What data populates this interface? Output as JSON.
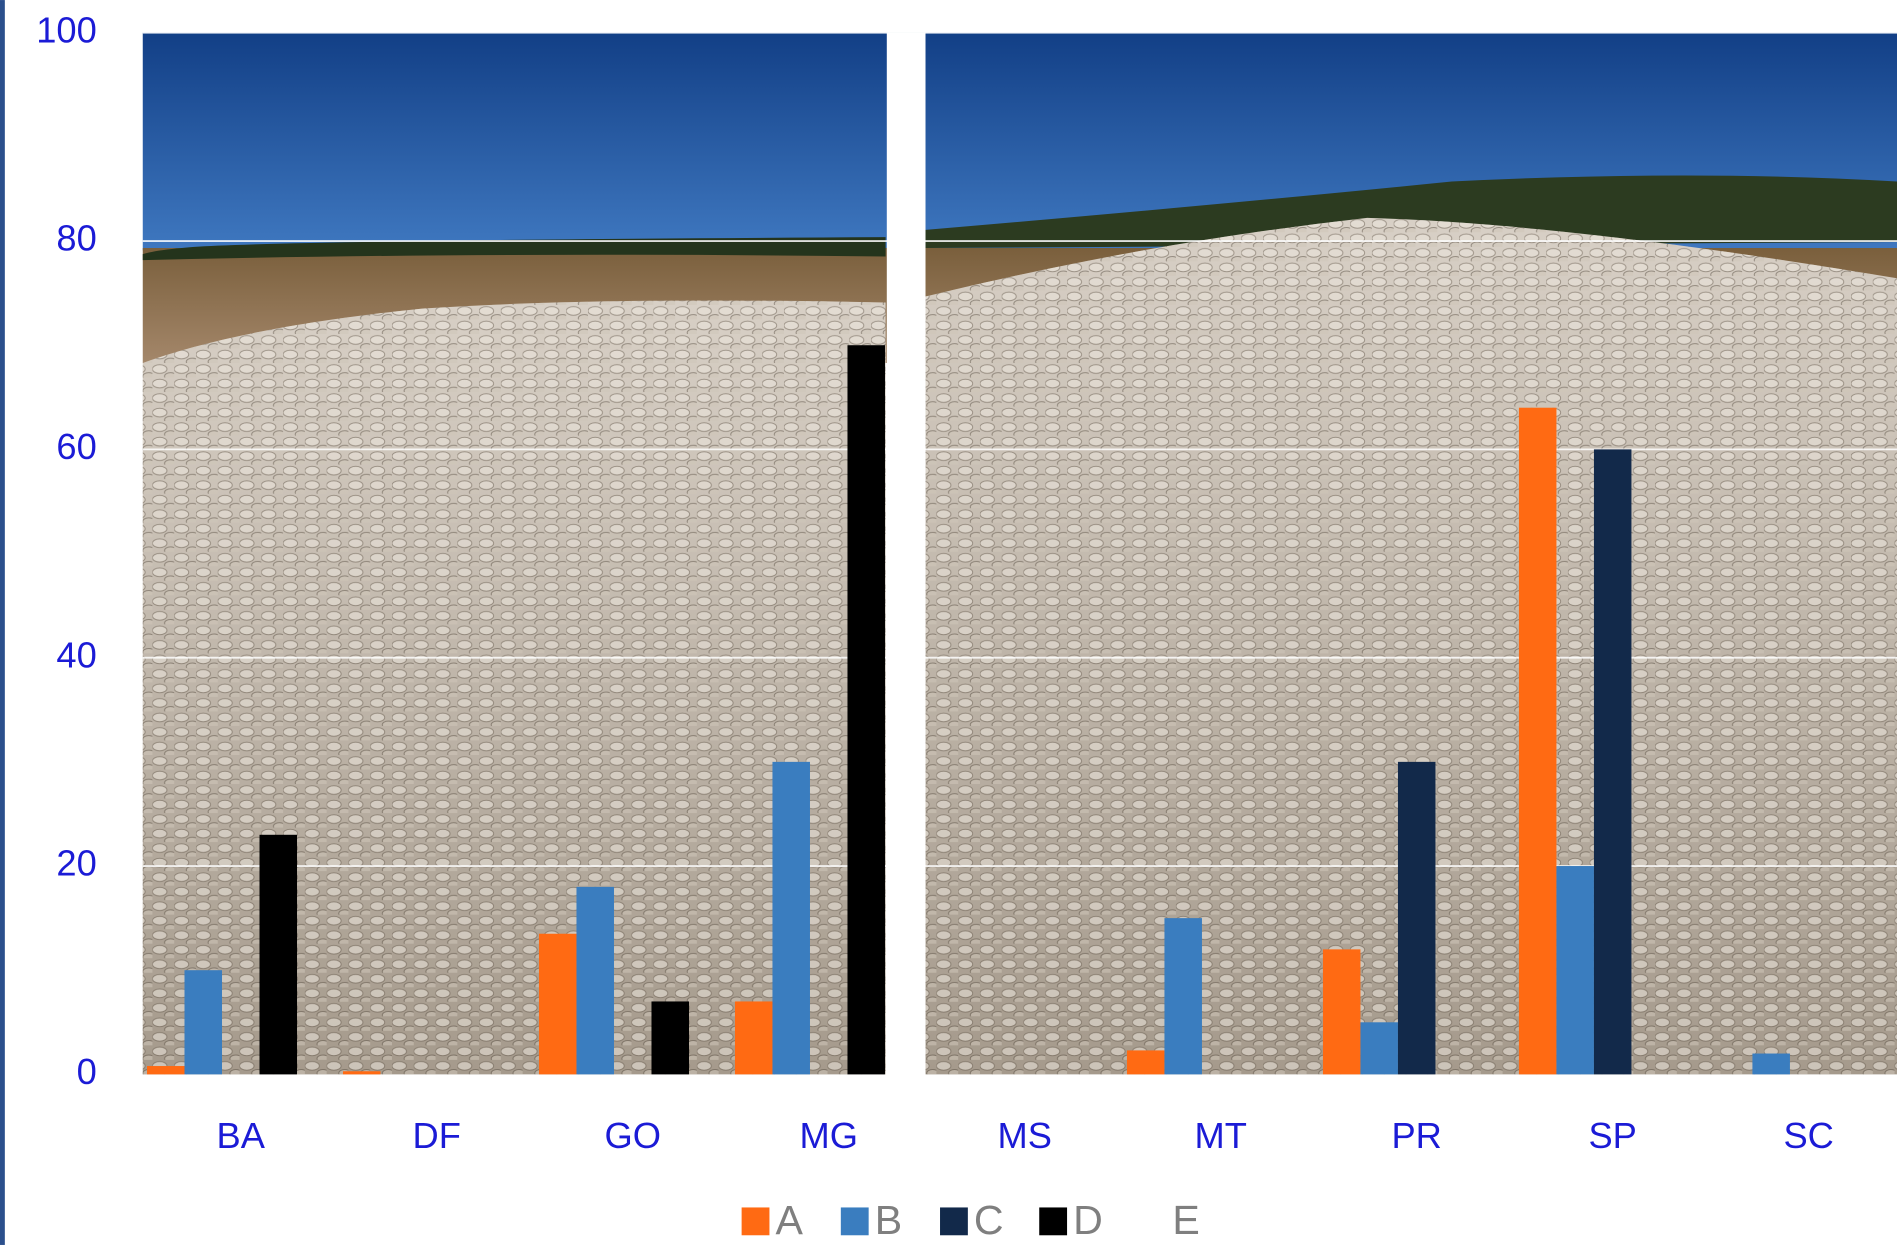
{
  "chart_data": {
    "type": "bar",
    "categories": [
      "BA",
      "DF",
      "GO",
      "MG",
      "MS",
      "MT",
      "PR",
      "SP",
      "SC"
    ],
    "series": [
      {
        "name": "A",
        "color": "#ff6a13",
        "values": [
          0.8,
          0.3,
          13.5,
          7,
          0,
          2.3,
          12,
          64,
          0
        ]
      },
      {
        "name": "B",
        "color": "#3a7dbf",
        "values": [
          10,
          0,
          18,
          30,
          0,
          15,
          5,
          20,
          2
        ]
      },
      {
        "name": "C",
        "color": "#12294a",
        "values": [
          0,
          0,
          0,
          0,
          0,
          0,
          30,
          60,
          0
        ]
      },
      {
        "name": "D",
        "color": "#000000",
        "values": [
          23,
          0,
          7,
          70,
          0,
          0,
          0,
          0,
          0
        ]
      },
      {
        "name": "E",
        "color": "#ffffff",
        "values": [
          null,
          null,
          null,
          null,
          null,
          null,
          null,
          null,
          null
        ]
      }
    ],
    "ylim": [
      0,
      100
    ],
    "yticks": [
      0,
      20,
      40,
      60,
      80,
      100
    ],
    "grid": true,
    "legend": "bottom"
  }
}
